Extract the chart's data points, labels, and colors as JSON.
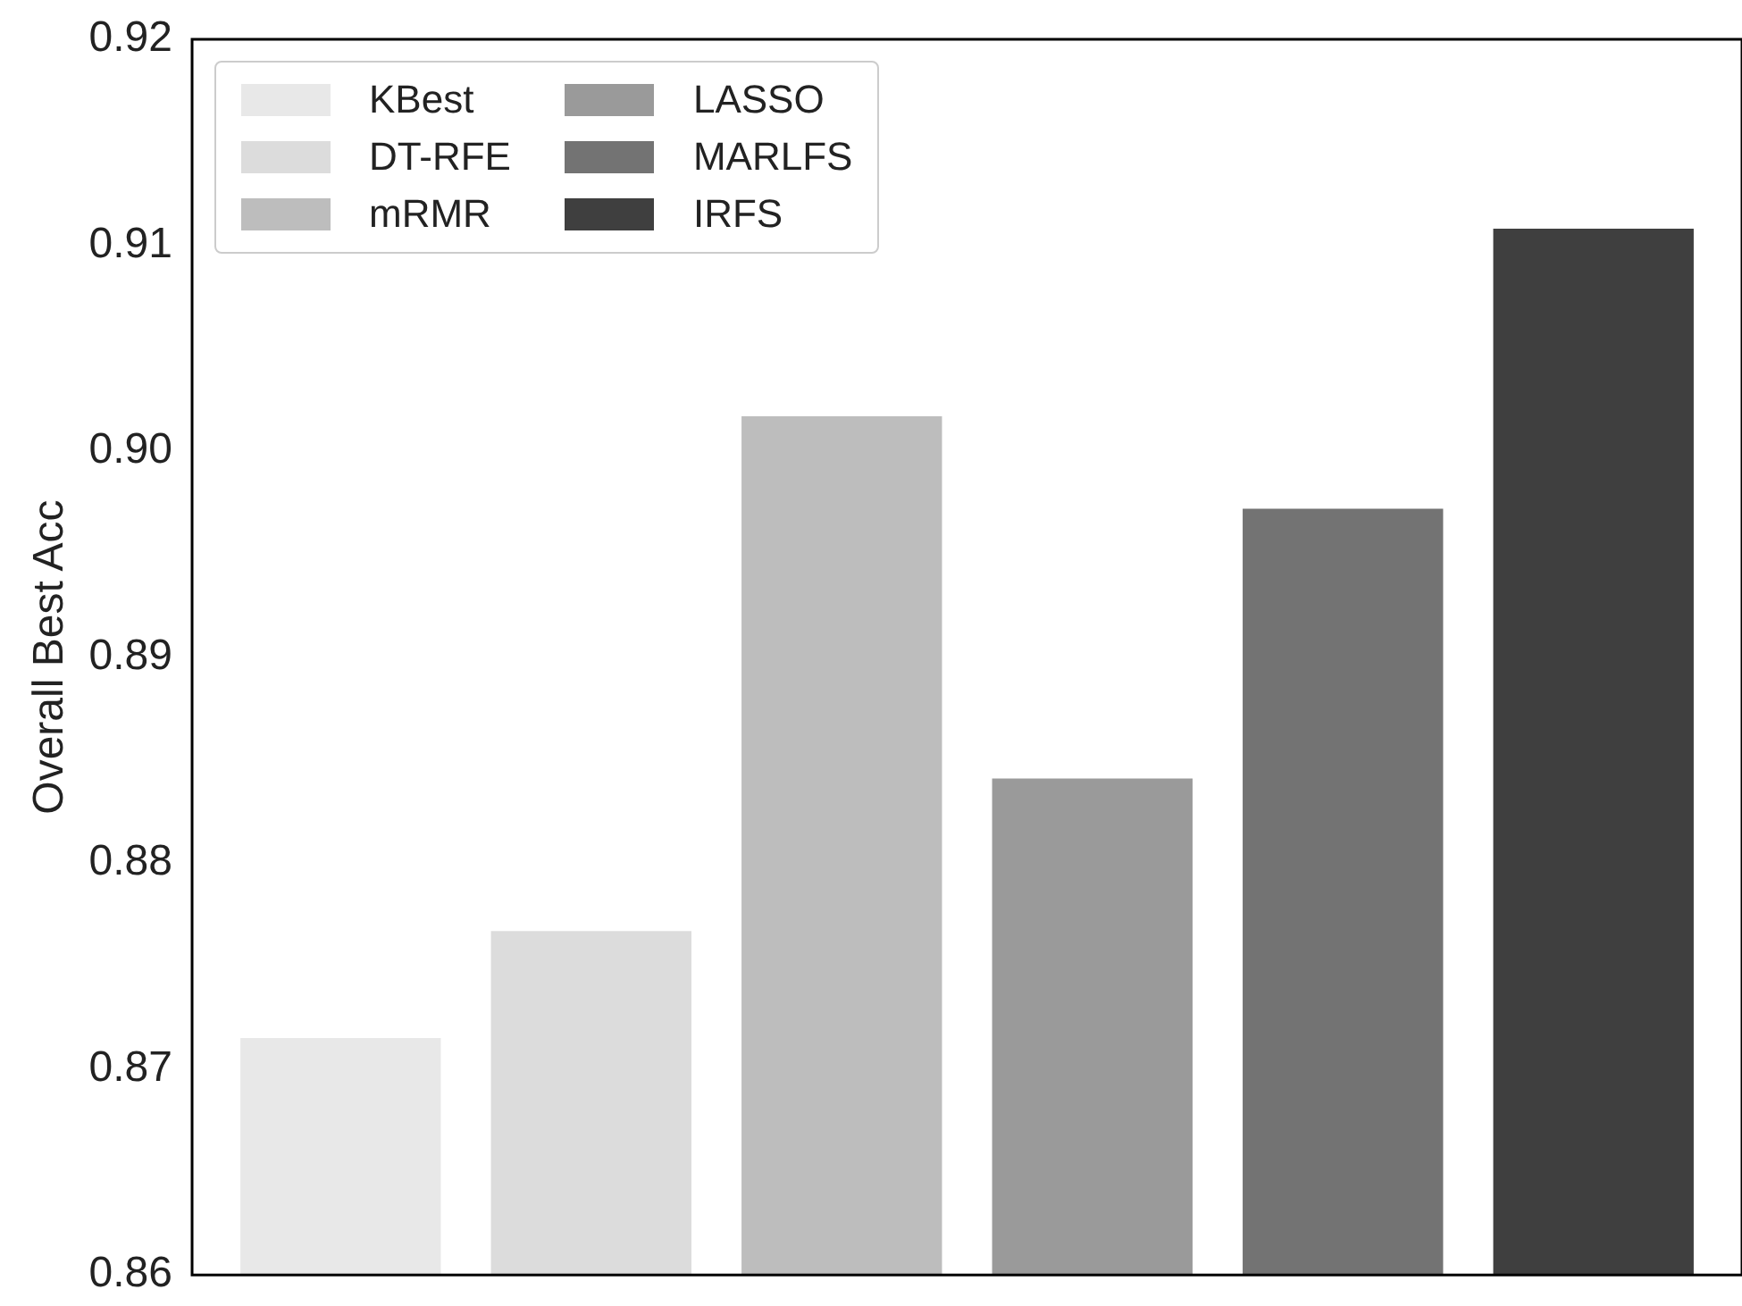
{
  "chart_data": {
    "type": "bar",
    "ylabel": "Overall Best Acc",
    "categories": [
      null
    ],
    "series": [
      {
        "name": "KBest",
        "color": "#e8e8e8",
        "values": [
          0.8715
        ]
      },
      {
        "name": "DT-RFE",
        "color": "#dcdcdc",
        "values": [
          0.8767
        ]
      },
      {
        "name": "mRMR",
        "color": "#bdbdbd",
        "values": [
          0.9017
        ]
      },
      {
        "name": "LASSO",
        "color": "#9a9a9a",
        "values": [
          0.8841
        ]
      },
      {
        "name": "MARLFS",
        "color": "#737373",
        "values": [
          0.8972
        ]
      },
      {
        "name": "IRFS",
        "color": "#3f3f3f",
        "values": [
          0.9108
        ]
      }
    ],
    "ylim": [
      0.86,
      0.92
    ],
    "yticks": [
      0.86,
      0.87,
      0.88,
      0.89,
      {
        "value": 0.9,
        "label": "0.90"
      },
      0.91,
      0.92
    ],
    "grid": false,
    "legend": "top left",
    "tick_labels": "y"
  }
}
